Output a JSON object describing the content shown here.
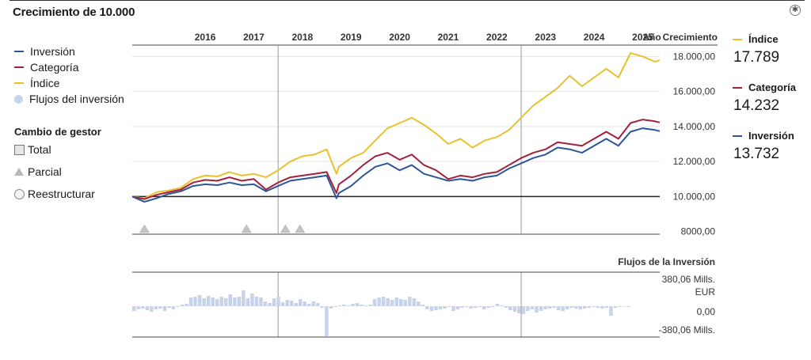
{
  "header": {
    "title": "Crecimiento de 10.000"
  },
  "legend": {
    "items": [
      {
        "label": "Inversión",
        "color": "#2e5597",
        "kind": "line"
      },
      {
        "label": "Categoría",
        "color": "#a2213c",
        "kind": "line"
      },
      {
        "label": "Índice",
        "color": "#e8c22a",
        "kind": "line"
      },
      {
        "label": "Flujos del inversión",
        "color": "#c6d3ea",
        "kind": "dot"
      }
    ]
  },
  "manager_change": {
    "title": "Cambio de gestor",
    "items": [
      {
        "label": "Total",
        "icon": "square-icon"
      },
      {
        "label": "Parcial",
        "icon": "triangle-icon"
      },
      {
        "label": "Reestructurar",
        "icon": "circle-icon"
      }
    ]
  },
  "summary": [
    {
      "label": "Índice",
      "value": "17.789",
      "color": "#e8c22a"
    },
    {
      "label": "Categoría",
      "value": "14.232",
      "color": "#a2213c"
    },
    {
      "label": "Inversión",
      "value": "13.732",
      "color": "#2e5597"
    }
  ],
  "chart_data": [
    {
      "type": "line",
      "title": "Crecimiento de 10.000",
      "x_axis_label": "Año",
      "y_axis_label": "Crecimiento",
      "x_tick_labels": [
        "2016",
        "2017",
        "2018",
        "2019",
        "2020",
        "2021",
        "2022",
        "2023",
        "2024",
        "2025"
      ],
      "y_tick_labels": [
        "18.000,00",
        "16.000,00",
        "14.000,00",
        "12.000,00",
        "10.000,00",
        "8000,00"
      ],
      "y_ticks": [
        18000,
        16000,
        14000,
        12000,
        10000,
        8000
      ],
      "ylim": [
        7850,
        18650
      ],
      "xlim": [
        2015.0,
        2025.85
      ],
      "baseline": 10000,
      "grid": true,
      "vertical_markers": [
        2018.0,
        2023.0
      ],
      "x": [
        2015.0,
        2015.25,
        2015.5,
        2015.75,
        2016.0,
        2016.25,
        2016.5,
        2016.75,
        2017.0,
        2017.25,
        2017.5,
        2017.75,
        2018.0,
        2018.25,
        2018.5,
        2018.75,
        2019.0,
        2019.2,
        2019.25,
        2019.5,
        2019.75,
        2020.0,
        2020.25,
        2020.5,
        2020.75,
        2021.0,
        2021.25,
        2021.5,
        2021.75,
        2022.0,
        2022.25,
        2022.5,
        2022.75,
        2023.0,
        2023.25,
        2023.5,
        2023.75,
        2024.0,
        2024.25,
        2024.5,
        2024.75,
        2025.0,
        2025.25,
        2025.5,
        2025.75,
        2025.85
      ],
      "series": [
        {
          "name": "Índice",
          "color": "#e8c22a",
          "values": [
            10000,
            9900,
            10250,
            10350,
            10500,
            11000,
            11200,
            11150,
            11400,
            11200,
            11300,
            11100,
            11500,
            12000,
            12300,
            12400,
            12700,
            11300,
            11700,
            12200,
            12500,
            13200,
            13900,
            14200,
            14500,
            14100,
            13600,
            13000,
            13300,
            12800,
            13200,
            13400,
            13800,
            14500,
            15200,
            15700,
            16200,
            16900,
            16300,
            16800,
            17300,
            16800,
            18200,
            18000,
            17700,
            17789
          ]
        },
        {
          "name": "Categoría",
          "color": "#a2213c",
          "values": [
            10000,
            9850,
            10100,
            10250,
            10400,
            10800,
            10950,
            10900,
            11100,
            10900,
            11000,
            10400,
            10800,
            11100,
            11200,
            11300,
            11400,
            10200,
            10700,
            11200,
            11800,
            12300,
            12500,
            12100,
            12400,
            11800,
            11500,
            11000,
            11200,
            11100,
            11300,
            11400,
            11800,
            12200,
            12500,
            12700,
            13100,
            13000,
            12900,
            13300,
            13700,
            13300,
            14200,
            14400,
            14300,
            14232
          ]
        },
        {
          "name": "Inversión",
          "color": "#2e5597",
          "values": [
            10000,
            9700,
            9900,
            10150,
            10300,
            10600,
            10700,
            10650,
            10800,
            10650,
            10700,
            10300,
            10600,
            10900,
            11000,
            11100,
            11200,
            9900,
            10200,
            10600,
            11200,
            11700,
            11900,
            11500,
            11800,
            11300,
            11100,
            10900,
            11000,
            10900,
            11100,
            11200,
            11600,
            11900,
            12200,
            12400,
            12800,
            12700,
            12500,
            12900,
            13300,
            12900,
            13700,
            13900,
            13800,
            13732
          ]
        }
      ],
      "manager_change_markers": {
        "type": "Parcial",
        "x": [
          2015.25,
          2017.35,
          2018.15,
          2018.45
        ]
      }
    },
    {
      "type": "bar",
      "title": "Flujos de la Inversión",
      "y_tick_labels": [
        "380,06 Mills. EUR",
        "0,00",
        "-380,06 Mills."
      ],
      "ylim": [
        -380.06,
        380.06
      ],
      "color": "#c6d3ea",
      "x_start": 2015.0,
      "x_step": 0.09,
      "values": [
        -60,
        -40,
        -30,
        -50,
        -70,
        -40,
        -30,
        -60,
        -20,
        -40,
        -10,
        20,
        30,
        110,
        120,
        140,
        100,
        130,
        110,
        90,
        120,
        100,
        150,
        110,
        120,
        200,
        100,
        160,
        120,
        110,
        60,
        40,
        100,
        120,
        50,
        80,
        70,
        40,
        90,
        60,
        30,
        60,
        40,
        -20,
        -380,
        -30,
        -10,
        10,
        20,
        10,
        30,
        40,
        20,
        10,
        20,
        90,
        110,
        120,
        100,
        80,
        110,
        90,
        80,
        120,
        100,
        60,
        20,
        -40,
        -60,
        -50,
        -40,
        -30,
        -10,
        -60,
        -40,
        -20,
        -10,
        -30,
        -20,
        -10,
        -40,
        -20,
        -10,
        30,
        10,
        -20,
        -50,
        -70,
        -90,
        -100,
        -60,
        -40,
        -80,
        -60,
        -40,
        -30,
        -20,
        -50,
        -60,
        -40,
        -20,
        -30,
        -40,
        -30,
        -20,
        -10,
        -20,
        -30,
        -20,
        -120,
        -20,
        -10,
        -5,
        -10
      ]
    }
  ]
}
